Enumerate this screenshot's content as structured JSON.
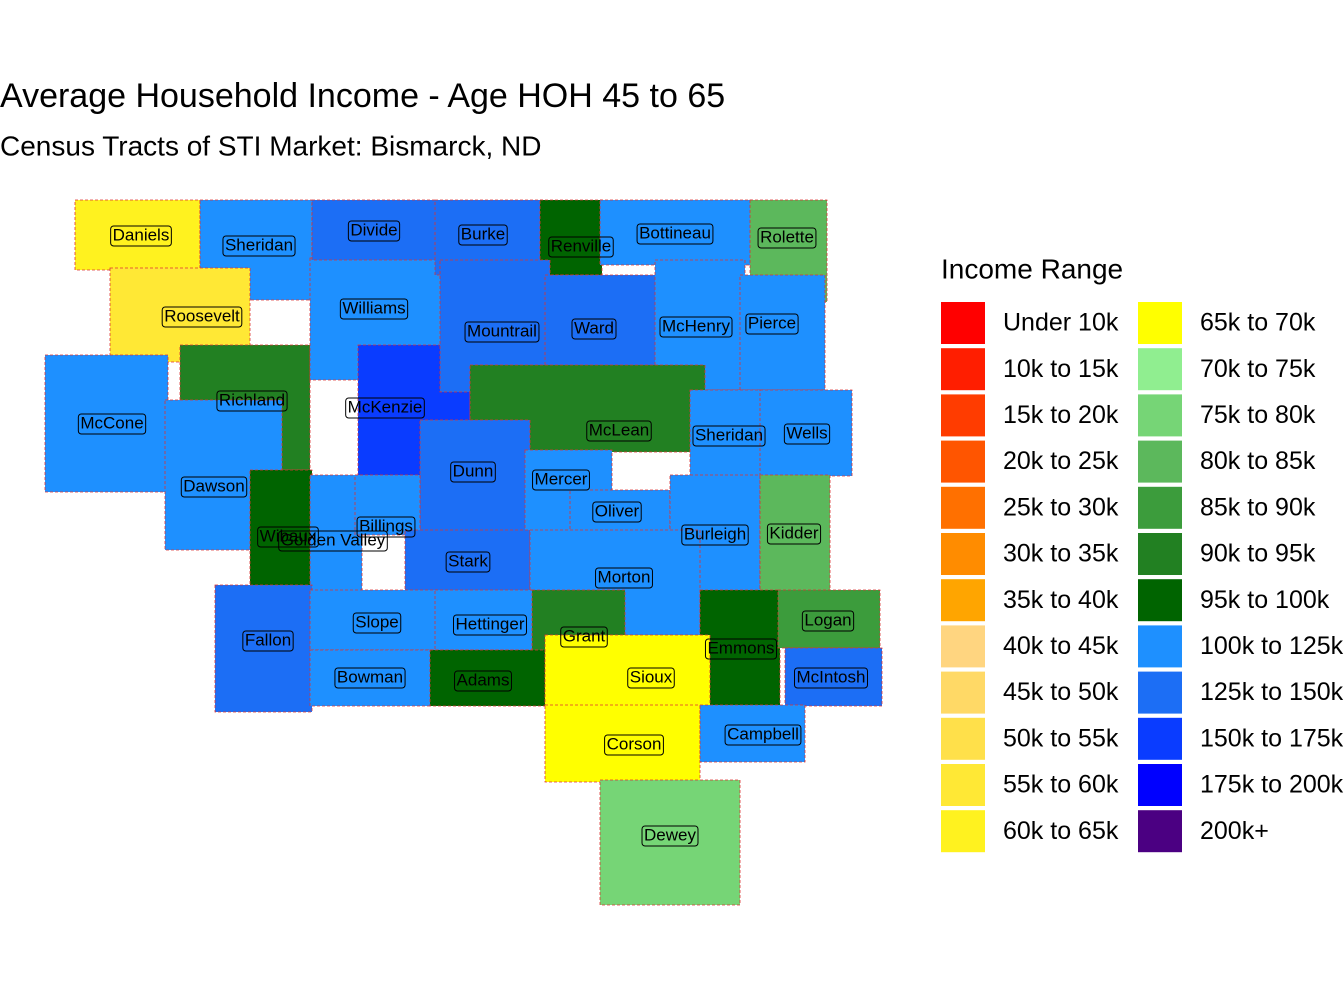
{
  "header": {
    "title": "Average Household Income - Age HOH 45 to 65",
    "subtitle": "Census Tracts of STI Market: Bismarck, ND"
  },
  "legend": {
    "title": "Income Range",
    "items": [
      {
        "label": "Under 10k",
        "color": "#FF0000"
      },
      {
        "label": "10k to 15k",
        "color": "#FF1E00"
      },
      {
        "label": "15k to 20k",
        "color": "#FF3C00"
      },
      {
        "label": "20k to 25k",
        "color": "#FF5500"
      },
      {
        "label": "25k to 30k",
        "color": "#FF7000"
      },
      {
        "label": "30k to 35k",
        "color": "#FF8C00"
      },
      {
        "label": "35k to 40k",
        "color": "#FFA500"
      },
      {
        "label": "40k to 45k",
        "color": "#FFD580"
      },
      {
        "label": "45k to 50k",
        "color": "#FFD966"
      },
      {
        "label": "50k to 55k",
        "color": "#FFE04A"
      },
      {
        "label": "55k to 60k",
        "color": "#FFE835"
      },
      {
        "label": "60k to 65k",
        "color": "#FFF21F"
      },
      {
        "label": "65k to 70k",
        "color": "#FFFF00"
      },
      {
        "label": "70k to 75k",
        "color": "#90EE90"
      },
      {
        "label": "75k to 80k",
        "color": "#76D576"
      },
      {
        "label": "80k to 85k",
        "color": "#5CB85C"
      },
      {
        "label": "85k to 90k",
        "color": "#3C9C3C"
      },
      {
        "label": "90k to 95k",
        "color": "#228022"
      },
      {
        "label": "95k to 100k",
        "color": "#006400"
      },
      {
        "label": "100k to 125k",
        "color": "#1E90FF"
      },
      {
        "label": "125k to 150k",
        "color": "#1C6EF5"
      },
      {
        "label": "150k to 175k",
        "color": "#0A3CFF"
      },
      {
        "label": "175k to 200k",
        "color": "#0000FF"
      },
      {
        "label": "200k+",
        "color": "#4B0082"
      }
    ]
  },
  "counties": [
    {
      "name": "Daniels",
      "color": "#FFF21F"
    },
    {
      "name": "Sheridan",
      "color": "#1E90FF"
    },
    {
      "name": "Roosevelt",
      "color": "#FFE835"
    },
    {
      "name": "McCone",
      "color": "#1E90FF"
    },
    {
      "name": "Richland",
      "color": "#228022"
    },
    {
      "name": "Dawson",
      "color": "#1E90FF"
    },
    {
      "name": "Wibaux",
      "color": "#006400"
    },
    {
      "name": "Golden Valley",
      "color": "#1E90FF"
    },
    {
      "name": "Williams",
      "color": "#1E90FF"
    },
    {
      "name": "Divide",
      "color": "#1C6EF5"
    },
    {
      "name": "McKenzie",
      "color": "#0A3CFF"
    },
    {
      "name": "Burke",
      "color": "#1C6EF5"
    },
    {
      "name": "Renville",
      "color": "#006400"
    },
    {
      "name": "Bottineau",
      "color": "#1E90FF"
    },
    {
      "name": "Rolette",
      "color": "#5CB85C"
    },
    {
      "name": "Mountrail",
      "color": "#1C6EF5"
    },
    {
      "name": "Ward",
      "color": "#1C6EF5"
    },
    {
      "name": "McHenry",
      "color": "#1E90FF"
    },
    {
      "name": "Pierce",
      "color": "#1E90FF"
    },
    {
      "name": "McLean",
      "color": "#228022"
    },
    {
      "name": "Sheridan",
      "color": "#1E90FF"
    },
    {
      "name": "Wells",
      "color": "#1E90FF"
    },
    {
      "name": "Dunn",
      "color": "#1C6EF5"
    },
    {
      "name": "Mercer",
      "color": "#1E90FF"
    },
    {
      "name": "Oliver",
      "color": "#1E90FF"
    },
    {
      "name": "Burleigh",
      "color": "#1E90FF"
    },
    {
      "name": "Kidder",
      "color": "#5CB85C"
    },
    {
      "name": "Billings",
      "color": "#1E90FF"
    },
    {
      "name": "Stark",
      "color": "#1C6EF5"
    },
    {
      "name": "Morton",
      "color": "#1E90FF"
    },
    {
      "name": "Grant",
      "color": "#228022"
    },
    {
      "name": "Emmons",
      "color": "#006400"
    },
    {
      "name": "Logan",
      "color": "#3C9C3C"
    },
    {
      "name": "McIntosh",
      "color": "#1C6EF5"
    },
    {
      "name": "Fallon",
      "color": "#1C6EF5"
    },
    {
      "name": "Slope",
      "color": "#1E90FF"
    },
    {
      "name": "Hettinger",
      "color": "#1E90FF"
    },
    {
      "name": "Bowman",
      "color": "#1E90FF"
    },
    {
      "name": "Adams",
      "color": "#006400"
    },
    {
      "name": "Sioux",
      "color": "#FFFF00"
    },
    {
      "name": "Corson",
      "color": "#FFFF00"
    },
    {
      "name": "Campbell",
      "color": "#1E90FF"
    },
    {
      "name": "Dewey",
      "color": "#76D576"
    }
  ]
}
